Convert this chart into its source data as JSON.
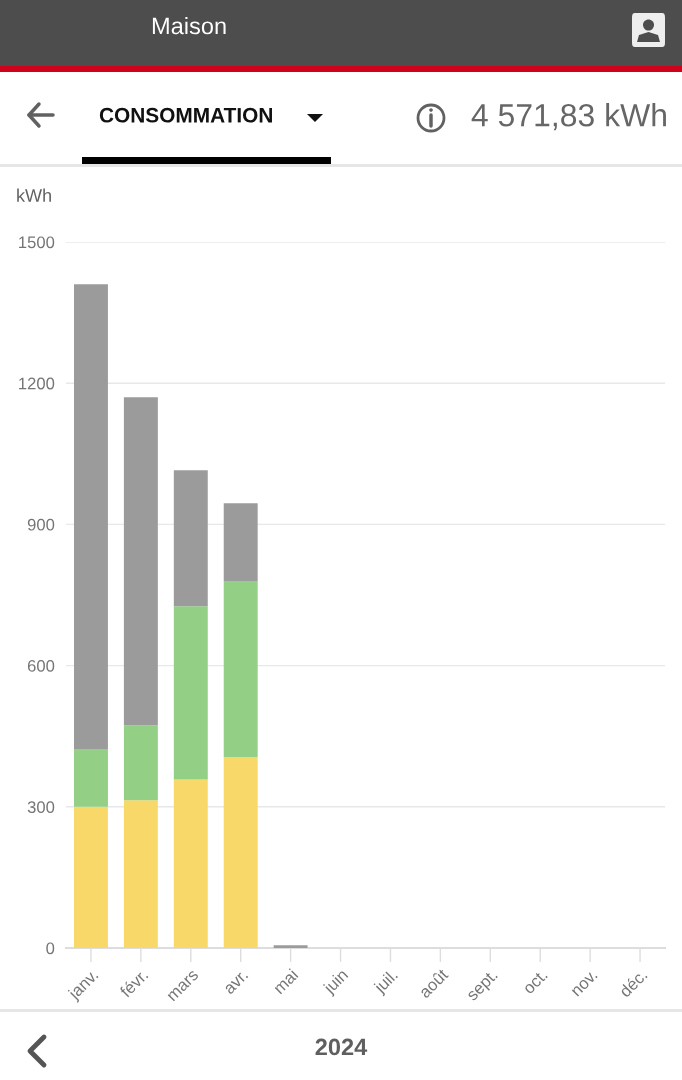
{
  "chart_data": {
    "type": "bar",
    "title": "CONSOMMATION",
    "subtitle": "Maison",
    "ylabel": "kWh",
    "annotations": [
      "4 571,83 kWh",
      "2024"
    ],
    "categories": [
      "janv.",
      "févr.",
      "mars",
      "avr.",
      "mai",
      "juin",
      "juil.",
      "août",
      "sept.",
      "oct.",
      "nov.",
      "déc."
    ],
    "series": [
      {
        "color": "#f9d86a",
        "values": [
          300,
          314,
          358,
          406,
          null,
          null,
          null,
          null,
          null,
          null,
          null,
          null
        ]
      },
      {
        "color": "#93cf84",
        "values": [
          123,
          159,
          368,
          374,
          null,
          null,
          null,
          null,
          null,
          null,
          null,
          null
        ]
      },
      {
        "color": "#9b9b9b",
        "values": [
          987,
          697,
          289,
          165,
          6,
          null,
          null,
          null,
          null,
          null,
          null,
          null
        ]
      }
    ],
    "stacked": true,
    "ylim": [
      0,
      1500
    ],
    "yticks": [
      0,
      300,
      600,
      900,
      1200,
      1500
    ],
    "grid": "y",
    "legend": false
  }
}
